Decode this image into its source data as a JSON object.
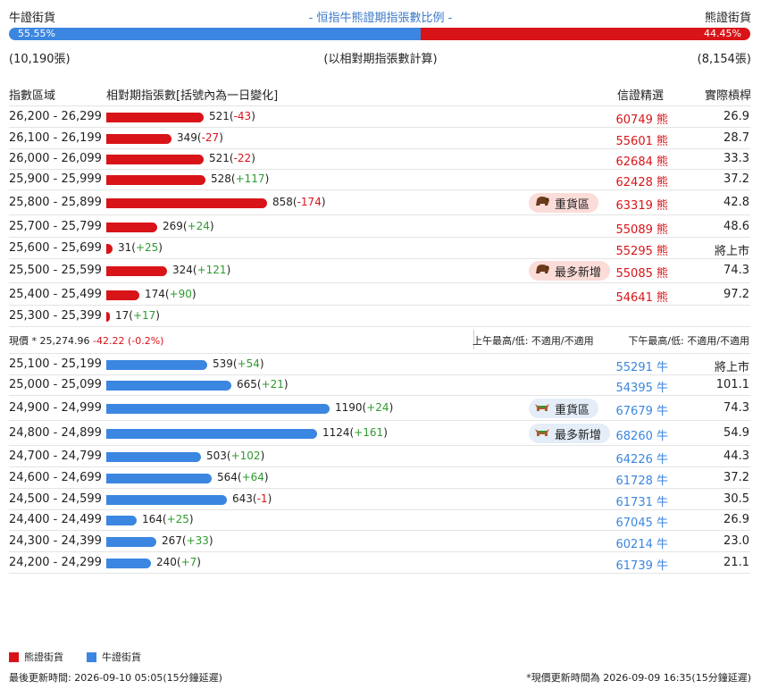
{
  "header": {
    "left": "牛證街貨",
    "title": "- 恒指牛熊證期指張數比例 -",
    "right": "熊證街貨"
  },
  "ratio": {
    "bull_pct": "55.55%",
    "bear_pct": "44.45%",
    "bull_fraction": 0.5555
  },
  "counts": {
    "bull": "(10,190張)",
    "note": "(以相對期指張數計算)",
    "bear": "(8,154張)"
  },
  "columns": {
    "range": "指數區域",
    "contracts": "相對期指張數[括號內為一日變化]",
    "pick": "信證精選",
    "leverage": "實際槓桿"
  },
  "price": {
    "label": "現價 *",
    "value": "25,274.96",
    "change": "-42.22 (-0.2%)",
    "am": "上午最高/低: 不適用/不適用",
    "pm": "下午最高/低: 不適用/不適用"
  },
  "badges": {
    "heavy": "重貨區",
    "most_new": "最多新增"
  },
  "chart_data": {
    "type": "bar",
    "title": "- 恒指牛熊證期指張數比例 -",
    "bear_rows": [
      {
        "range": "26,200 - 26,299",
        "value": 521,
        "change": "-43",
        "code": "60749",
        "tag": "熊",
        "lev": "26.9"
      },
      {
        "range": "26,100 - 26,199",
        "value": 349,
        "change": "-27",
        "code": "55601",
        "tag": "熊",
        "lev": "28.7"
      },
      {
        "range": "26,000 - 26,099",
        "value": 521,
        "change": "-22",
        "code": "62684",
        "tag": "熊",
        "lev": "33.3"
      },
      {
        "range": "25,900 - 25,999",
        "value": 528,
        "change": "+117",
        "code": "62428",
        "tag": "熊",
        "lev": "37.2"
      },
      {
        "range": "25,800 - 25,899",
        "value": 858,
        "change": "-174",
        "code": "63319",
        "tag": "熊",
        "lev": "42.8",
        "badge": "heavy"
      },
      {
        "range": "25,700 - 25,799",
        "value": 269,
        "change": "+24",
        "code": "55089",
        "tag": "熊",
        "lev": "48.6"
      },
      {
        "range": "25,600 - 25,699",
        "value": 31,
        "change": "+25",
        "code": "55295",
        "tag": "熊",
        "lev": "將上市"
      },
      {
        "range": "25,500 - 25,599",
        "value": 324,
        "change": "+121",
        "code": "55085",
        "tag": "熊",
        "lev": "74.3",
        "badge": "most_new"
      },
      {
        "range": "25,400 - 25,499",
        "value": 174,
        "change": "+90",
        "code": "54641",
        "tag": "熊",
        "lev": "97.2"
      },
      {
        "range": "25,300 - 25,399",
        "value": 17,
        "change": "+17",
        "code": "",
        "tag": "",
        "lev": ""
      }
    ],
    "bull_rows": [
      {
        "range": "25,100 - 25,199",
        "value": 539,
        "change": "+54",
        "code": "55291",
        "tag": "牛",
        "lev": "將上市"
      },
      {
        "range": "25,000 - 25,099",
        "value": 665,
        "change": "+21",
        "code": "54395",
        "tag": "牛",
        "lev": "101.1"
      },
      {
        "range": "24,900 - 24,999",
        "value": 1190,
        "change": "+24",
        "code": "67679",
        "tag": "牛",
        "lev": "74.3",
        "badge": "heavy"
      },
      {
        "range": "24,800 - 24,899",
        "value": 1124,
        "change": "+161",
        "code": "68260",
        "tag": "牛",
        "lev": "54.9",
        "badge": "most_new"
      },
      {
        "range": "24,700 - 24,799",
        "value": 503,
        "change": "+102",
        "code": "64226",
        "tag": "牛",
        "lev": "44.3"
      },
      {
        "range": "24,600 - 24,699",
        "value": 564,
        "change": "+64",
        "code": "61728",
        "tag": "牛",
        "lev": "37.2"
      },
      {
        "range": "24,500 - 24,599",
        "value": 643,
        "change": "-1",
        "code": "61731",
        "tag": "牛",
        "lev": "30.5"
      },
      {
        "range": "24,400 - 24,499",
        "value": 164,
        "change": "+25",
        "code": "67045",
        "tag": "牛",
        "lev": "26.9"
      },
      {
        "range": "24,300 - 24,399",
        "value": 267,
        "change": "+33",
        "code": "60214",
        "tag": "牛",
        "lev": "23.0"
      },
      {
        "range": "24,200 - 24,299",
        "value": 240,
        "change": "+7",
        "code": "61739",
        "tag": "牛",
        "lev": "21.1"
      }
    ],
    "colors": {
      "bear": "#d81418",
      "bull": "#3b86e0"
    }
  },
  "legend": {
    "bear": "熊證街貨",
    "bull": "牛證街貨"
  },
  "footer": {
    "left": "最後更新時間: 2026-09-10 05:05(15分鐘延遲)",
    "right": "*現價更新時間為 2026-09-09 16:35(15分鐘延遲)"
  }
}
